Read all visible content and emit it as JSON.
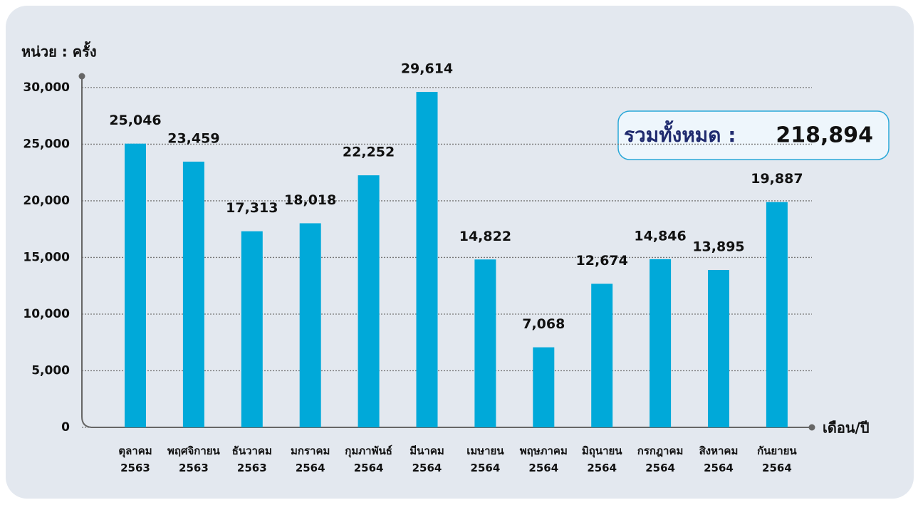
{
  "chart_data": {
    "type": "bar",
    "y_label": "หน่วย : ครั้ง",
    "x_label": "เดือน/ปี",
    "categories": [
      [
        "ตุลาคม",
        "2563"
      ],
      [
        "พฤศจิกายน",
        "2563"
      ],
      [
        "ธันวาคม",
        "2563"
      ],
      [
        "มกราคม",
        "2564"
      ],
      [
        "กุมภาพันธ์",
        "2564"
      ],
      [
        "มีนาคม",
        "2564"
      ],
      [
        "เมษายน",
        "2564"
      ],
      [
        "พฤษภาคม",
        "2564"
      ],
      [
        "มิถุนายน",
        "2564"
      ],
      [
        "กรกฎาคม",
        "2564"
      ],
      [
        "สิงหาคม",
        "2564"
      ],
      [
        "กันยายน",
        "2564"
      ]
    ],
    "values": [
      25046,
      23459,
      17313,
      18018,
      22252,
      29614,
      14822,
      7068,
      12674,
      14846,
      13895,
      19887
    ],
    "value_labels": [
      "25,046",
      "23,459",
      "17,313",
      "18,018",
      "22,252",
      "29,614",
      "14,822",
      "7,068",
      "12,674",
      "14,846",
      "13,895",
      "19,887"
    ],
    "color": "#00a9d9",
    "ylim": [
      0,
      31000
    ],
    "yticks": [
      0,
      {
        "value": 5000,
        "label": "5,000"
      },
      {
        "value": 10000,
        "label": "10,000"
      },
      {
        "value": 15000,
        "label": "15,000"
      },
      {
        "value": 20000,
        "label": "20,000"
      },
      {
        "value": 25000,
        "label": "25,000"
      },
      {
        "value": 30000,
        "label": "30,000"
      }
    ],
    "grid": true,
    "total_label": "รวมทั้งหมด :",
    "total_value": "218,894"
  }
}
